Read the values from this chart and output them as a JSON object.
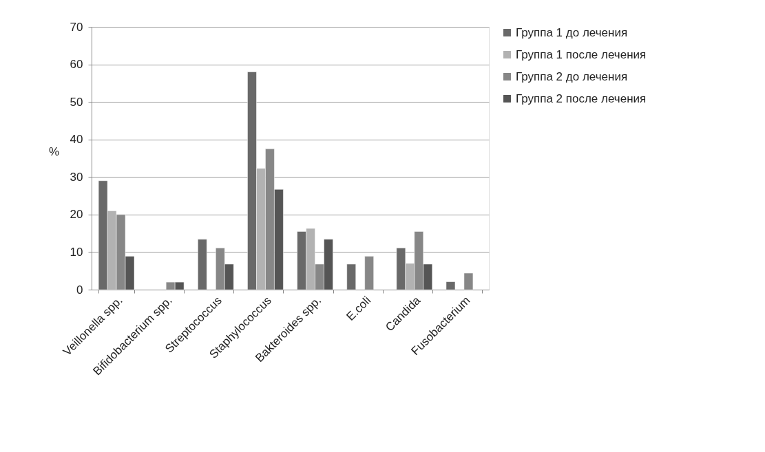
{
  "chart_data": {
    "type": "bar",
    "ylabel": "%",
    "categories": [
      "Veillonella spp.",
      "Bifidobacterium spp.",
      "Streptococcus",
      "Staphylococcus",
      "Bakteroides spp.",
      "E.coli",
      "Candida",
      "Fusobacterium"
    ],
    "series": [
      {
        "name": "Группа 1 до лечения",
        "color": "#696969",
        "values": [
          29,
          null,
          13.4,
          58,
          15.5,
          6.8,
          11.1,
          2.1
        ]
      },
      {
        "name": "Группа 1 после лечения",
        "color": "#b2b2b2",
        "values": [
          21,
          null,
          null,
          32.3,
          16.3,
          null,
          7,
          null
        ]
      },
      {
        "name": "Группа 2 до лечения",
        "color": "#878787",
        "values": [
          20,
          2,
          11.1,
          37.5,
          6.8,
          8.9,
          15.5,
          4.4
        ]
      },
      {
        "name": "Группа 2 после лечения",
        "color": "#555555",
        "values": [
          8.9,
          2,
          6.8,
          26.7,
          13.4,
          null,
          6.8,
          null
        ]
      }
    ],
    "ylim": [
      0,
      70
    ],
    "yticks": [
      0,
      10,
      20,
      30,
      40,
      50,
      60,
      70
    ],
    "grid": "y",
    "legend": "right"
  }
}
